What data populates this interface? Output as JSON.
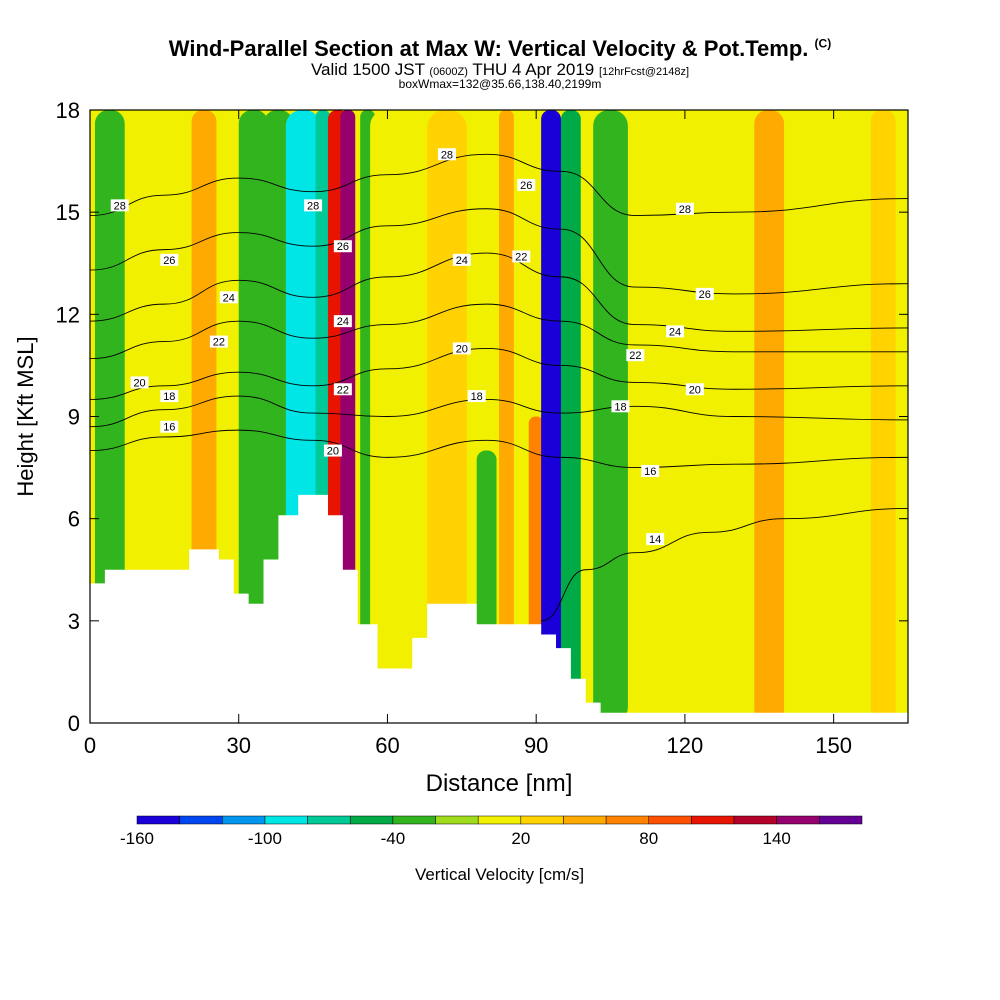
{
  "title": {
    "main": "Wind-Parallel Section at Max W: Vertical Velocity & Pot.Temp.",
    "copyright": "(C)",
    "valid_main": "Valid 1500 JST",
    "valid_utc": "(0600Z)",
    "valid_date": "THU 4 Apr 2019",
    "forecast": "[12hrFcst@2148z]",
    "box": "boxWmax=132@35.66,138.40,2199m"
  },
  "colors": {
    "terrain": "#ffffff",
    "contour": "#000000",
    "palette": [
      "#1a00d8",
      "#0046f0",
      "#0096f0",
      "#00e6e6",
      "#00c896",
      "#00aa46",
      "#32b41e",
      "#a0dc1e",
      "#f0f000",
      "#ffd200",
      "#ffaa00",
      "#ff8200",
      "#ff5000",
      "#e61400",
      "#b40028",
      "#96006e",
      "#640096"
    ]
  },
  "chart_data": {
    "type": "heatmap",
    "xlabel": "Distance [nm]",
    "ylabel": "Height [Kft MSL]",
    "xlim": [
      0,
      165
    ],
    "ylim": [
      0,
      18
    ],
    "xticks": [
      0,
      30,
      60,
      90,
      120,
      150
    ],
    "yticks": [
      0,
      3,
      6,
      9,
      12,
      15,
      18
    ],
    "colorbar": {
      "label": "Vertical Velocity [cm/s]",
      "levels": [
        -160,
        -140,
        -120,
        -100,
        -80,
        -60,
        -40,
        -20,
        0,
        20,
        40,
        60,
        80,
        100,
        120,
        140,
        160,
        180
      ],
      "tick_labels": [
        -160,
        -100,
        -40,
        20,
        80,
        140
      ]
    },
    "vertical_velocity_bands": [
      {
        "x": 4,
        "w": 6,
        "v": -30,
        "top": 18
      },
      {
        "x": 16,
        "w": 5,
        "v": 5,
        "top": 18
      },
      {
        "x": 23,
        "w": 5,
        "v": 45,
        "top": 18
      },
      {
        "x": 33,
        "w": 6,
        "v": -30,
        "top": 18
      },
      {
        "x": 38,
        "w": 6,
        "v": -30,
        "top": 18
      },
      {
        "x": 43,
        "w": 7,
        "v": -100,
        "top": 18
      },
      {
        "x": 47,
        "w": 3,
        "v": -70,
        "top": 18
      },
      {
        "x": 50,
        "w": 4,
        "v": 110,
        "top": 18
      },
      {
        "x": 52,
        "w": 3,
        "v": 150,
        "top": 18
      },
      {
        "x": 56,
        "w": 3,
        "v": -40,
        "top": 18
      },
      {
        "x": 60,
        "w": 7,
        "v": 10,
        "top": 18
      },
      {
        "x": 72,
        "w": 8,
        "v": 35,
        "top": 18
      },
      {
        "x": 80,
        "w": 4,
        "v": -25,
        "top": 8
      },
      {
        "x": 84,
        "w": 3,
        "v": 40,
        "top": 18
      },
      {
        "x": 90,
        "w": 3,
        "v": 75,
        "top": 9
      },
      {
        "x": 93,
        "w": 4,
        "v": -150,
        "top": 18
      },
      {
        "x": 97,
        "w": 4,
        "v": -60,
        "top": 18
      },
      {
        "x": 105,
        "w": 7,
        "v": -30,
        "top": 18
      },
      {
        "x": 118,
        "w": 5,
        "v": 10,
        "top": 18
      },
      {
        "x": 137,
        "w": 6,
        "v": 40,
        "top": 18
      },
      {
        "x": 150,
        "w": 4,
        "v": 15,
        "top": 5
      },
      {
        "x": 160,
        "w": 5,
        "v": 35,
        "top": 18
      }
    ],
    "terrain": [
      [
        0,
        4.1
      ],
      [
        3,
        4.1
      ],
      [
        3,
        4.5
      ],
      [
        20,
        4.5
      ],
      [
        20,
        5.1
      ],
      [
        26,
        5.1
      ],
      [
        26,
        4.8
      ],
      [
        29,
        4.8
      ],
      [
        29,
        3.8
      ],
      [
        32,
        3.8
      ],
      [
        32,
        3.5
      ],
      [
        35,
        3.5
      ],
      [
        35,
        4.8
      ],
      [
        38,
        4.8
      ],
      [
        38,
        6.1
      ],
      [
        42,
        6.1
      ],
      [
        42,
        6.7
      ],
      [
        48,
        6.7
      ],
      [
        48,
        6.1
      ],
      [
        51,
        6.1
      ],
      [
        51,
        4.5
      ],
      [
        54,
        4.5
      ],
      [
        54,
        2.9
      ],
      [
        58,
        2.9
      ],
      [
        58,
        1.6
      ],
      [
        65,
        1.6
      ],
      [
        65,
        2.5
      ],
      [
        68,
        2.5
      ],
      [
        68,
        3.5
      ],
      [
        78,
        3.5
      ],
      [
        78,
        2.9
      ],
      [
        91,
        2.9
      ],
      [
        91,
        2.6
      ],
      [
        94,
        2.6
      ],
      [
        94,
        2.2
      ],
      [
        97,
        2.2
      ],
      [
        97,
        1.3
      ],
      [
        100,
        1.3
      ],
      [
        100,
        0.6
      ],
      [
        103,
        0.6
      ],
      [
        103,
        0.3
      ],
      [
        165,
        0.3
      ]
    ],
    "isentropes": [
      {
        "label": "14",
        "points": [
          [
            91,
            3.0
          ],
          [
            100,
            4.5
          ],
          [
            110,
            5.0
          ],
          [
            125,
            5.6
          ],
          [
            140,
            6.0
          ],
          [
            165,
            6.3
          ]
        ],
        "label_at": [
          114,
          5.4
        ]
      },
      {
        "label": "16",
        "points": [
          [
            0,
            8.0
          ],
          [
            15,
            8.4
          ],
          [
            30,
            8.6
          ],
          [
            45,
            8.3
          ],
          [
            60,
            7.8
          ],
          [
            80,
            8.3
          ],
          [
            95,
            7.8
          ],
          [
            110,
            7.5
          ],
          [
            130,
            7.6
          ],
          [
            165,
            7.8
          ]
        ],
        "label_at": [
          113,
          7.4
        ]
      },
      {
        "label": "18",
        "points": [
          [
            0,
            8.7
          ],
          [
            15,
            9.2
          ],
          [
            30,
            9.6
          ],
          [
            45,
            9.1
          ],
          [
            60,
            9.0
          ],
          [
            80,
            9.5
          ],
          [
            95,
            9.1
          ],
          [
            110,
            9.3
          ],
          [
            130,
            9.0
          ],
          [
            165,
            8.9
          ]
        ],
        "label_at": [
          107,
          9.3
        ]
      },
      {
        "label": "20",
        "points": [
          [
            0,
            9.5
          ],
          [
            15,
            9.9
          ],
          [
            30,
            10.3
          ],
          [
            45,
            9.9
          ],
          [
            60,
            10.4
          ],
          [
            80,
            11.0
          ],
          [
            95,
            10.5
          ],
          [
            110,
            10.0
          ],
          [
            130,
            9.8
          ],
          [
            165,
            9.9
          ]
        ],
        "label_at": [
          122,
          9.8
        ]
      },
      {
        "label": "22",
        "points": [
          [
            0,
            10.7
          ],
          [
            15,
            11.2
          ],
          [
            30,
            11.8
          ],
          [
            45,
            11.3
          ],
          [
            60,
            11.7
          ],
          [
            80,
            12.3
          ],
          [
            95,
            11.8
          ],
          [
            110,
            11.1
          ],
          [
            130,
            10.9
          ],
          [
            165,
            10.9
          ]
        ],
        "label_at": [
          110,
          10.8
        ]
      },
      {
        "label": "24",
        "points": [
          [
            0,
            11.8
          ],
          [
            15,
            12.3
          ],
          [
            30,
            13.0
          ],
          [
            45,
            12.5
          ],
          [
            60,
            13.1
          ],
          [
            80,
            13.8
          ],
          [
            95,
            13.1
          ],
          [
            110,
            11.7
          ],
          [
            130,
            11.5
          ],
          [
            165,
            11.6
          ]
        ],
        "label_at": [
          118,
          11.5
        ]
      },
      {
        "label": "26",
        "points": [
          [
            0,
            13.3
          ],
          [
            15,
            13.9
          ],
          [
            30,
            14.4
          ],
          [
            45,
            14.0
          ],
          [
            60,
            14.6
          ],
          [
            80,
            15.1
          ],
          [
            95,
            14.5
          ],
          [
            110,
            12.8
          ],
          [
            130,
            12.6
          ],
          [
            165,
            12.9
          ]
        ],
        "label_at": [
          124,
          12.6
        ]
      },
      {
        "label": "28",
        "points": [
          [
            0,
            14.9
          ],
          [
            15,
            15.5
          ],
          [
            30,
            16.0
          ],
          [
            45,
            15.6
          ],
          [
            60,
            16.1
          ],
          [
            80,
            16.7
          ],
          [
            95,
            16.2
          ],
          [
            110,
            14.9
          ],
          [
            130,
            15.0
          ],
          [
            165,
            15.4
          ]
        ],
        "label_at": [
          120,
          15.1
        ]
      }
    ],
    "extra_labels": [
      {
        "label": "28",
        "at": [
          6,
          15.2
        ]
      },
      {
        "label": "26",
        "at": [
          16,
          13.6
        ]
      },
      {
        "label": "24",
        "at": [
          28,
          12.5
        ]
      },
      {
        "label": "22",
        "at": [
          26,
          11.2
        ]
      },
      {
        "label": "20",
        "at": [
          10,
          10.0
        ]
      },
      {
        "label": "18",
        "at": [
          16,
          9.6
        ]
      },
      {
        "label": "16",
        "at": [
          16,
          8.7
        ]
      },
      {
        "label": "28",
        "at": [
          45,
          15.2
        ]
      },
      {
        "label": "26",
        "at": [
          51,
          14.0
        ]
      },
      {
        "label": "24",
        "at": [
          51,
          11.8
        ]
      },
      {
        "label": "22",
        "at": [
          51,
          9.8
        ]
      },
      {
        "label": "20",
        "at": [
          49,
          8.0
        ]
      },
      {
        "label": "28",
        "at": [
          72,
          16.7
        ]
      },
      {
        "label": "24",
        "at": [
          75,
          13.6
        ]
      },
      {
        "label": "20",
        "at": [
          75,
          11.0
        ]
      },
      {
        "label": "18",
        "at": [
          78,
          9.6
        ]
      },
      {
        "label": "26",
        "at": [
          88,
          15.8
        ]
      },
      {
        "label": "22",
        "at": [
          87,
          13.7
        ]
      }
    ]
  }
}
